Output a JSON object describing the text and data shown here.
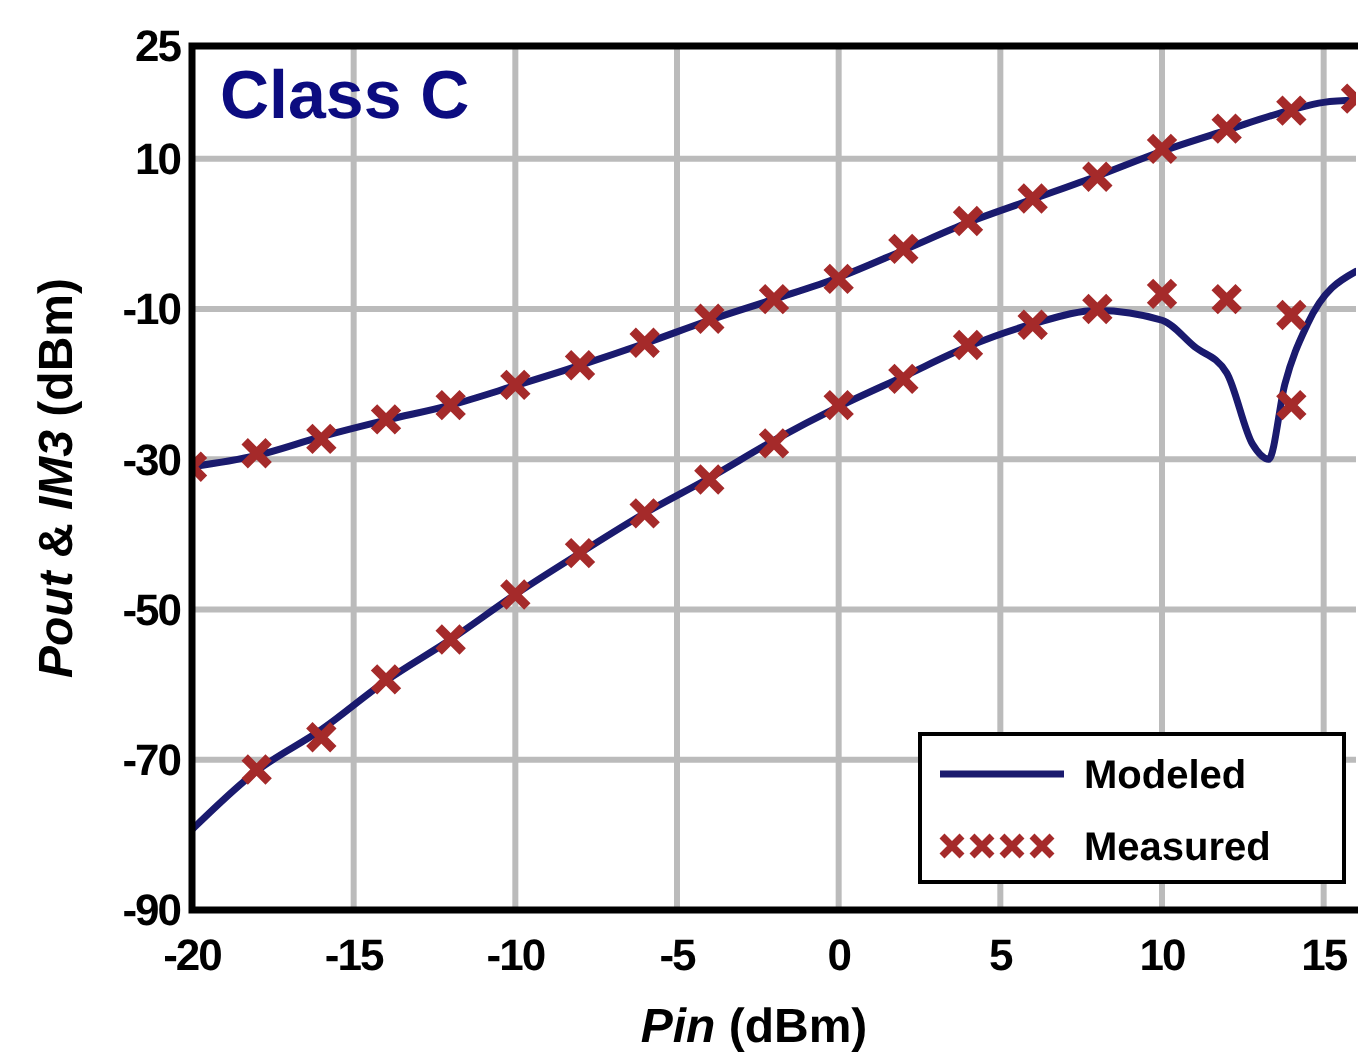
{
  "chart_data": {
    "type": "line",
    "title": "Class C",
    "xlabel": "Pin (dBm)",
    "ylabel": "Pout & IM3 (dBm)",
    "xlim": [
      -20,
      16
    ],
    "xticks": [
      -20,
      -15,
      -10,
      -5,
      0,
      5,
      10,
      15
    ],
    "ylim": [
      -90,
      25
    ],
    "yticks": [
      -90,
      -70,
      -50,
      -30,
      -10,
      10,
      25
    ],
    "grid": true,
    "legend": "bottom right",
    "series": [
      {
        "name": "Modeled",
        "color": "#1a1a6e",
        "line_style": "solid",
        "x": [
          -20,
          -18,
          -16,
          -14,
          -12,
          -10,
          -8,
          -6,
          -4,
          -2,
          0,
          2,
          4,
          6,
          8,
          10,
          12,
          14,
          15,
          16
        ],
        "values": [
          -31,
          -29.5,
          -27,
          -24.8,
          -22.8,
          -20.2,
          -17.5,
          -14.6,
          -11.5,
          -8.7,
          -5.8,
          -2.2,
          1.5,
          4.6,
          7.7,
          11,
          13.8,
          16.5,
          17.5,
          17.8
        ]
      },
      {
        "color": "#1a1a6e",
        "line_style": "solid",
        "x": [
          -20,
          -18,
          -16,
          -14,
          -12,
          -10,
          -8,
          -6,
          -4,
          -2,
          0,
          2,
          4,
          6,
          8,
          10,
          11,
          12,
          12.8,
          13.3,
          13.8,
          14.5,
          16
        ],
        "values": [
          -79.3,
          -71.5,
          -66,
          -59.5,
          -54,
          -48,
          -42.5,
          -37.2,
          -32.5,
          -27.5,
          -23,
          -19,
          -15,
          -12,
          -10.2,
          -11.5,
          -15,
          -18.5,
          -28,
          -30,
          -20,
          -12,
          -5
        ]
      },
      {
        "name": "Measured",
        "type": "scatter",
        "color": "#a52a2a",
        "marker": "cross",
        "x": [
          -20,
          -18,
          -16,
          -14,
          -12,
          -10,
          -8,
          -6,
          -4,
          -2,
          0,
          2,
          4,
          6,
          8,
          10,
          12,
          14,
          16
        ],
        "values": [
          -31,
          -29.2,
          -27.3,
          -24.7,
          -22.8,
          -20.1,
          -17.5,
          -14.5,
          -11.3,
          -8.7,
          -6,
          -2,
          1.7,
          4.7,
          7.6,
          11.3,
          14,
          16.4,
          18
        ]
      },
      {
        "type": "scatter",
        "color": "#a52a2a",
        "marker": "cross",
        "x": [
          -18,
          -16,
          -14,
          -12,
          -10,
          -8,
          -6,
          -4,
          -2,
          0,
          2,
          4,
          6,
          8,
          10,
          12,
          14,
          14
        ],
        "values": [
          -71.3,
          -67,
          -59.3,
          -54,
          -48,
          -42.5,
          -37.2,
          -32.7,
          -27.9,
          -22.8,
          -19.3,
          -14.8,
          -12.1,
          -10,
          -8,
          -8.7,
          -10.8,
          -22.8
        ]
      }
    ]
  }
}
